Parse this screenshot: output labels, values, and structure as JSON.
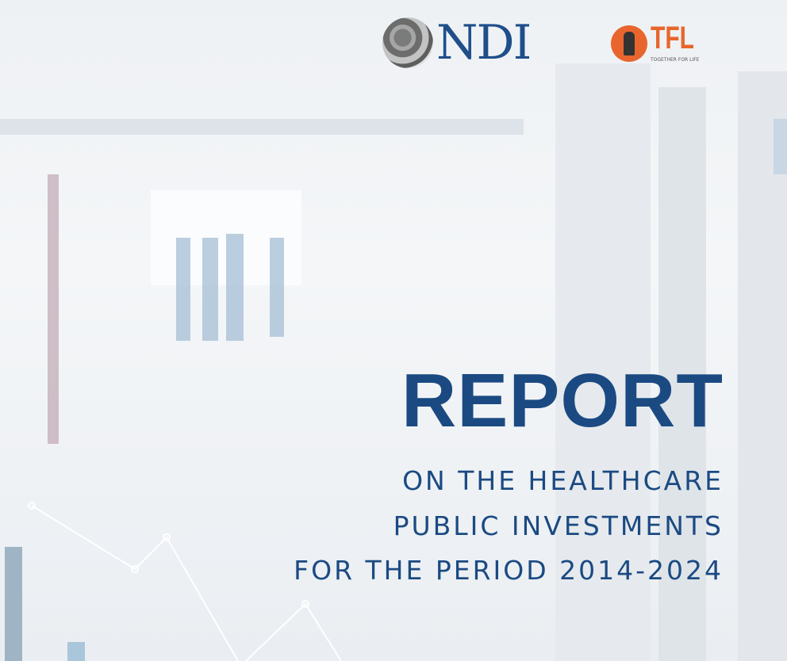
{
  "logos": {
    "ndi": {
      "text": "NDI",
      "color": "#1f4e8a",
      "icon": "globe-icon"
    },
    "tfl": {
      "text": "TFL",
      "tagline": "TOGETHER FOR LIFE",
      "color": "#e8662d",
      "icon": "sun-hand-icon"
    }
  },
  "cover": {
    "title": "REPORT",
    "subtitle_lines": [
      "ON THE HEALTHCARE",
      "PUBLIC INVESTMENTS",
      "FOR THE PERIOD 2014-2024"
    ],
    "text_color": "#1b4a82"
  }
}
